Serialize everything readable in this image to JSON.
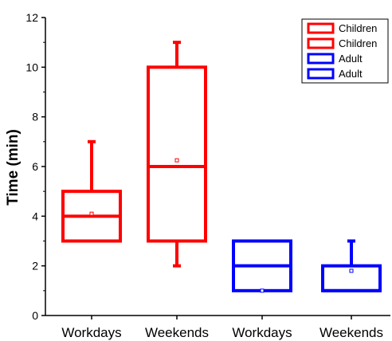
{
  "chart_data": {
    "type": "box",
    "ylabel": "Time (min)",
    "xlabel": "",
    "ylim": [
      0,
      12
    ],
    "yticks": [
      0,
      2,
      4,
      6,
      8,
      10,
      12
    ],
    "categories": [
      "Workdays",
      "Weekends",
      "Workdays",
      "Weekends"
    ],
    "legend": {
      "placement": "top-right",
      "entries": [
        {
          "label": "Children",
          "color": "#ff0000"
        },
        {
          "label": "Children",
          "color": "#ff0000"
        },
        {
          "label": "Adult",
          "color": "#0000ff"
        },
        {
          "label": "Adult",
          "color": "#0000ff"
        }
      ]
    },
    "boxes": [
      {
        "category": "Workdays",
        "group": "Children",
        "color": "#ff0000",
        "min": 3,
        "q1": 3,
        "median": 4,
        "q3": 5,
        "max": 7,
        "mean": 4.1
      },
      {
        "category": "Weekends",
        "group": "Children",
        "color": "#ff0000",
        "min": 2,
        "q1": 3,
        "median": 6,
        "q3": 10,
        "max": 11,
        "mean": 6.25
      },
      {
        "category": "Workdays",
        "group": "Adult",
        "color": "#0000ff",
        "min": 1,
        "q1": 1,
        "median": 2,
        "q3": 3,
        "max": 3,
        "mean": 1
      },
      {
        "category": "Weekends",
        "group": "Adult",
        "color": "#0000ff",
        "min": 1,
        "q1": 1,
        "median": 1,
        "q3": 2,
        "max": 3,
        "mean": 1.8
      }
    ]
  }
}
